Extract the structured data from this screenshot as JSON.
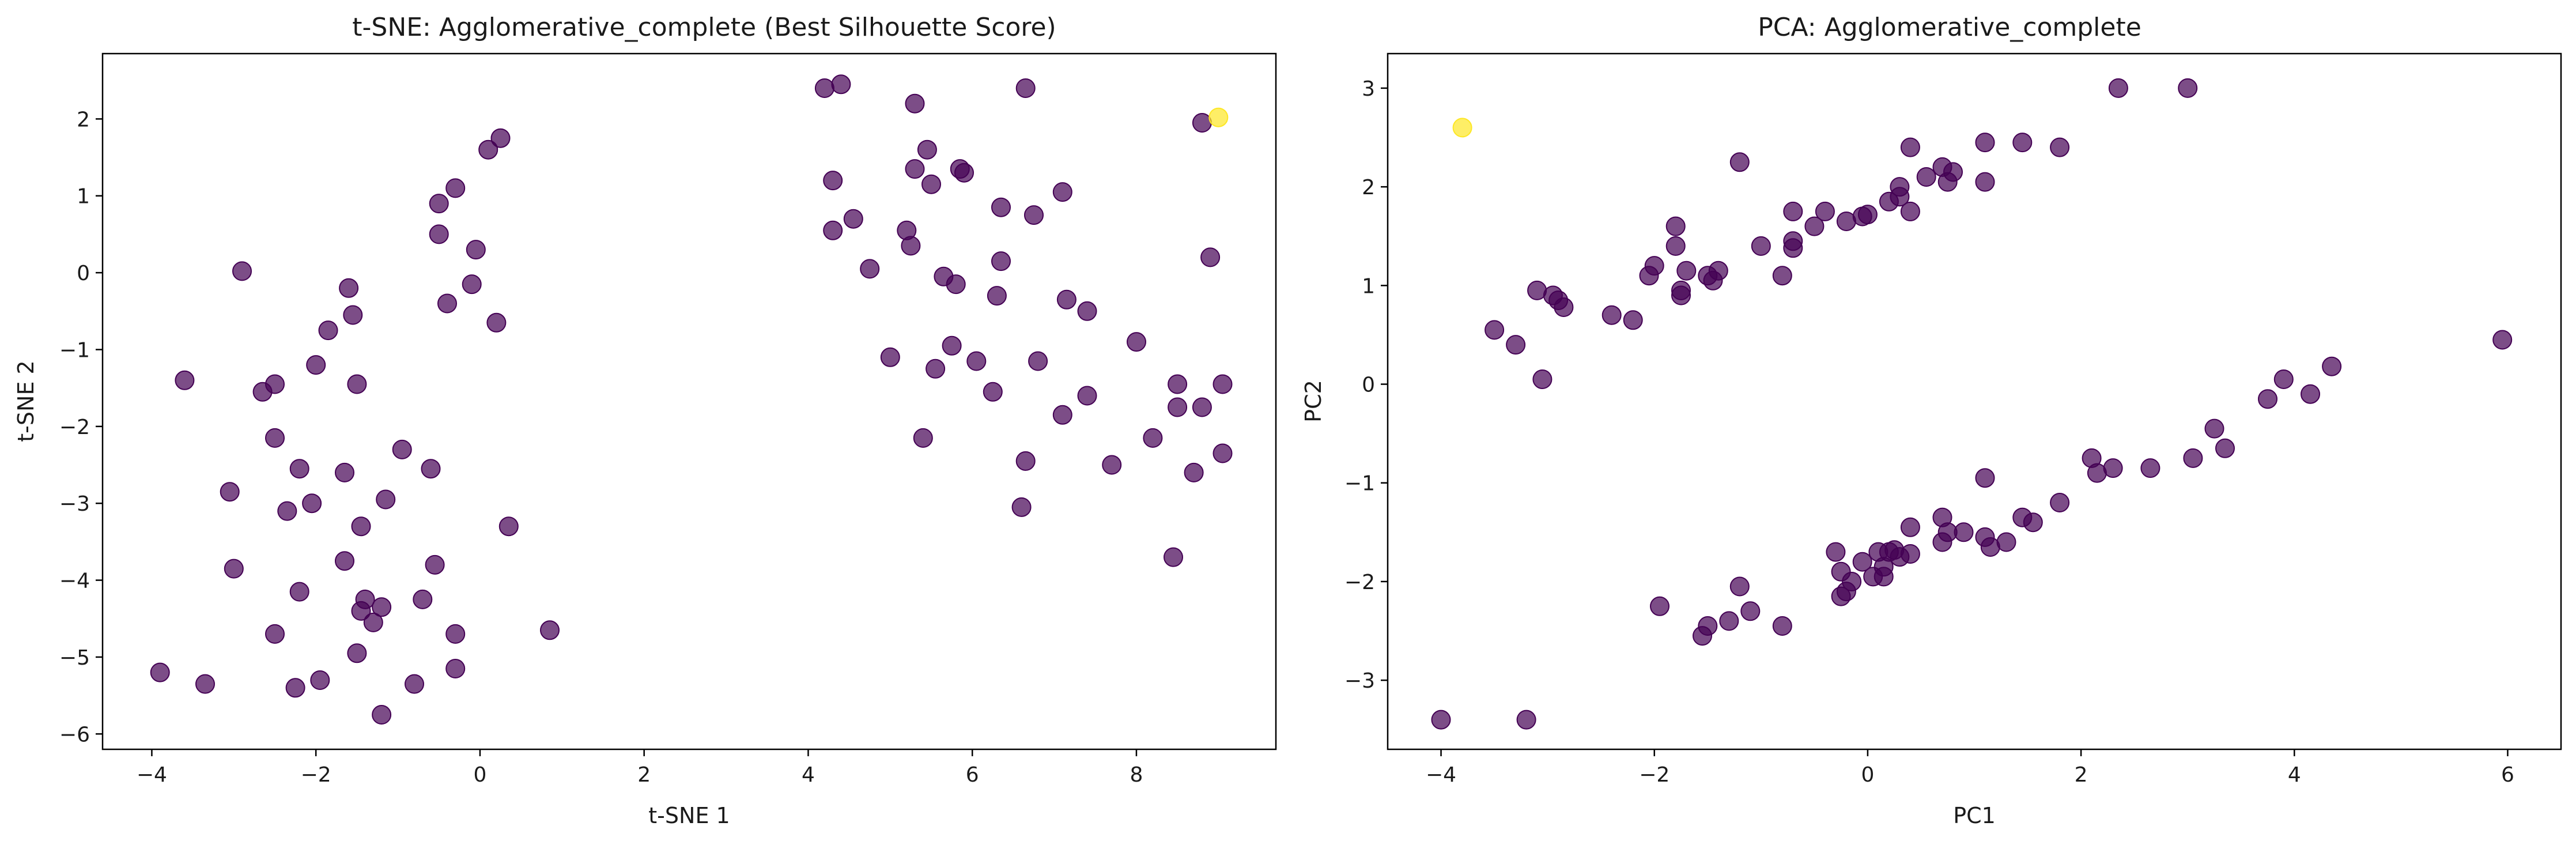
{
  "colors": {
    "cluster_0": "#440154",
    "cluster_1": "#fde725",
    "axis": "#000000",
    "text": "#1a1a1a"
  },
  "chart_data": [
    {
      "type": "scatter",
      "title": "t-SNE: Agglomerative_complete (Best Silhouette Score)",
      "xlabel": "t-SNE 1",
      "ylabel": "t-SNE 2",
      "xlim": [
        -4.6,
        9.7
      ],
      "ylim": [
        -6.2,
        2.85
      ],
      "xticks": [
        -4,
        -2,
        0,
        2,
        4,
        6,
        8
      ],
      "yticks": [
        -6,
        -5,
        -4,
        -3,
        -2,
        -1,
        0,
        1,
        2
      ],
      "grid": false,
      "point_alpha": 0.7,
      "points": [
        {
          "x": -3.9,
          "y": -5.2,
          "c": 0
        },
        {
          "x": -3.35,
          "y": -5.35,
          "c": 0
        },
        {
          "x": -3.6,
          "y": -1.4,
          "c": 0
        },
        {
          "x": -3.05,
          "y": -2.85,
          "c": 0
        },
        {
          "x": -3.0,
          "y": -3.85,
          "c": 0
        },
        {
          "x": -2.9,
          "y": 0.02,
          "c": 0
        },
        {
          "x": -2.65,
          "y": -1.55,
          "c": 0
        },
        {
          "x": -2.5,
          "y": -1.45,
          "c": 0
        },
        {
          "x": -2.5,
          "y": -2.15,
          "c": 0
        },
        {
          "x": -2.5,
          "y": -4.7,
          "c": 0
        },
        {
          "x": -2.35,
          "y": -3.1,
          "c": 0
        },
        {
          "x": -2.25,
          "y": -5.4,
          "c": 0
        },
        {
          "x": -2.2,
          "y": -2.55,
          "c": 0
        },
        {
          "x": -2.2,
          "y": -4.15,
          "c": 0
        },
        {
          "x": -2.05,
          "y": -3.0,
          "c": 0
        },
        {
          "x": -2.0,
          "y": -1.2,
          "c": 0
        },
        {
          "x": -1.95,
          "y": -5.3,
          "c": 0
        },
        {
          "x": -1.85,
          "y": -0.75,
          "c": 0
        },
        {
          "x": -1.65,
          "y": -2.6,
          "c": 0
        },
        {
          "x": -1.65,
          "y": -3.75,
          "c": 0
        },
        {
          "x": -1.6,
          "y": -0.2,
          "c": 0
        },
        {
          "x": -1.55,
          "y": -0.55,
          "c": 0
        },
        {
          "x": -1.5,
          "y": -1.45,
          "c": 0
        },
        {
          "x": -1.5,
          "y": -4.95,
          "c": 0
        },
        {
          "x": -1.45,
          "y": -3.3,
          "c": 0
        },
        {
          "x": -1.45,
          "y": -4.4,
          "c": 0
        },
        {
          "x": -1.4,
          "y": -4.25,
          "c": 0
        },
        {
          "x": -1.3,
          "y": -4.55,
          "c": 0
        },
        {
          "x": -1.2,
          "y": -4.35,
          "c": 0
        },
        {
          "x": -1.15,
          "y": -2.95,
          "c": 0
        },
        {
          "x": -1.2,
          "y": -5.75,
          "c": 0
        },
        {
          "x": -0.95,
          "y": -2.3,
          "c": 0
        },
        {
          "x": -0.8,
          "y": -5.35,
          "c": 0
        },
        {
          "x": -0.7,
          "y": -4.25,
          "c": 0
        },
        {
          "x": -0.6,
          "y": -2.55,
          "c": 0
        },
        {
          "x": -0.55,
          "y": -3.8,
          "c": 0
        },
        {
          "x": -0.5,
          "y": 0.5,
          "c": 0
        },
        {
          "x": -0.5,
          "y": 0.9,
          "c": 0
        },
        {
          "x": -0.4,
          "y": -0.4,
          "c": 0
        },
        {
          "x": -0.3,
          "y": 1.1,
          "c": 0
        },
        {
          "x": -0.3,
          "y": -4.7,
          "c": 0
        },
        {
          "x": -0.3,
          "y": -5.15,
          "c": 0
        },
        {
          "x": -0.1,
          "y": -0.15,
          "c": 0
        },
        {
          "x": -0.05,
          "y": 0.3,
          "c": 0
        },
        {
          "x": 0.1,
          "y": 1.6,
          "c": 0
        },
        {
          "x": 0.2,
          "y": -0.65,
          "c": 0
        },
        {
          "x": 0.25,
          "y": 1.75,
          "c": 0
        },
        {
          "x": 0.35,
          "y": -3.3,
          "c": 0
        },
        {
          "x": 0.85,
          "y": -4.65,
          "c": 0
        },
        {
          "x": 4.2,
          "y": 2.4,
          "c": 0
        },
        {
          "x": 4.3,
          "y": 1.2,
          "c": 0
        },
        {
          "x": 4.3,
          "y": 0.55,
          "c": 0
        },
        {
          "x": 4.4,
          "y": 2.45,
          "c": 0
        },
        {
          "x": 4.55,
          "y": 0.7,
          "c": 0
        },
        {
          "x": 4.75,
          "y": 0.05,
          "c": 0
        },
        {
          "x": 5.0,
          "y": -1.1,
          "c": 0
        },
        {
          "x": 5.2,
          "y": 0.55,
          "c": 0
        },
        {
          "x": 5.25,
          "y": 0.35,
          "c": 0
        },
        {
          "x": 5.3,
          "y": 2.2,
          "c": 0
        },
        {
          "x": 5.3,
          "y": 1.35,
          "c": 0
        },
        {
          "x": 5.4,
          "y": -2.15,
          "c": 0
        },
        {
          "x": 5.45,
          "y": 1.6,
          "c": 0
        },
        {
          "x": 5.5,
          "y": 1.15,
          "c": 0
        },
        {
          "x": 5.55,
          "y": -1.25,
          "c": 0
        },
        {
          "x": 5.65,
          "y": -0.05,
          "c": 0
        },
        {
          "x": 5.75,
          "y": -0.95,
          "c": 0
        },
        {
          "x": 5.8,
          "y": -0.15,
          "c": 0
        },
        {
          "x": 5.85,
          "y": 1.35,
          "c": 0
        },
        {
          "x": 5.9,
          "y": 1.3,
          "c": 0
        },
        {
          "x": 6.05,
          "y": -1.15,
          "c": 0
        },
        {
          "x": 6.25,
          "y": -1.55,
          "c": 0
        },
        {
          "x": 6.3,
          "y": -0.3,
          "c": 0
        },
        {
          "x": 6.35,
          "y": 0.85,
          "c": 0
        },
        {
          "x": 6.35,
          "y": 0.15,
          "c": 0
        },
        {
          "x": 6.6,
          "y": -3.05,
          "c": 0
        },
        {
          "x": 6.65,
          "y": 2.4,
          "c": 0
        },
        {
          "x": 6.65,
          "y": -2.45,
          "c": 0
        },
        {
          "x": 6.75,
          "y": 0.75,
          "c": 0
        },
        {
          "x": 6.8,
          "y": -1.15,
          "c": 0
        },
        {
          "x": 7.1,
          "y": 1.05,
          "c": 0
        },
        {
          "x": 7.1,
          "y": -1.85,
          "c": 0
        },
        {
          "x": 7.15,
          "y": -0.35,
          "c": 0
        },
        {
          "x": 7.4,
          "y": -0.5,
          "c": 0
        },
        {
          "x": 7.4,
          "y": -1.6,
          "c": 0
        },
        {
          "x": 7.7,
          "y": -2.5,
          "c": 0
        },
        {
          "x": 8.0,
          "y": -0.9,
          "c": 0
        },
        {
          "x": 8.2,
          "y": -2.15,
          "c": 0
        },
        {
          "x": 8.45,
          "y": -3.7,
          "c": 0
        },
        {
          "x": 8.5,
          "y": -1.45,
          "c": 0
        },
        {
          "x": 8.5,
          "y": -1.75,
          "c": 0
        },
        {
          "x": 8.7,
          "y": -2.6,
          "c": 0
        },
        {
          "x": 8.8,
          "y": 1.95,
          "c": 0
        },
        {
          "x": 8.8,
          "y": -1.75,
          "c": 0
        },
        {
          "x": 8.9,
          "y": 0.2,
          "c": 0
        },
        {
          "x": 9.05,
          "y": -1.45,
          "c": 0
        },
        {
          "x": 9.05,
          "y": -2.35,
          "c": 0
        },
        {
          "x": 9.0,
          "y": 2.02,
          "c": 1
        }
      ]
    },
    {
      "type": "scatter",
      "title": "PCA: Agglomerative_complete",
      "xlabel": "PC1",
      "ylabel": "PC2",
      "xlim": [
        -4.5,
        6.5
      ],
      "ylim": [
        -3.7,
        3.35
      ],
      "xticks": [
        -4,
        -2,
        0,
        2,
        4,
        6
      ],
      "yticks": [
        -3,
        -2,
        -1,
        0,
        1,
        2,
        3
      ],
      "grid": false,
      "point_alpha": 0.7,
      "points": [
        {
          "x": -3.5,
          "y": 0.55,
          "c": 0
        },
        {
          "x": -3.3,
          "y": 0.4,
          "c": 0
        },
        {
          "x": -3.1,
          "y": 0.95,
          "c": 0
        },
        {
          "x": -3.05,
          "y": 0.05,
          "c": 0
        },
        {
          "x": -2.95,
          "y": 0.9,
          "c": 0
        },
        {
          "x": -2.9,
          "y": 0.85,
          "c": 0
        },
        {
          "x": -2.85,
          "y": 0.78,
          "c": 0
        },
        {
          "x": -2.4,
          "y": 0.7,
          "c": 0
        },
        {
          "x": -2.2,
          "y": 0.65,
          "c": 0
        },
        {
          "x": -2.05,
          "y": 1.1,
          "c": 0
        },
        {
          "x": -2.0,
          "y": 1.2,
          "c": 0
        },
        {
          "x": -1.8,
          "y": 1.6,
          "c": 0
        },
        {
          "x": -1.8,
          "y": 1.4,
          "c": 0
        },
        {
          "x": -1.75,
          "y": 0.95,
          "c": 0
        },
        {
          "x": -1.75,
          "y": 0.9,
          "c": 0
        },
        {
          "x": -1.7,
          "y": 1.15,
          "c": 0
        },
        {
          "x": -1.5,
          "y": 1.1,
          "c": 0
        },
        {
          "x": -1.45,
          "y": 1.05,
          "c": 0
        },
        {
          "x": -1.4,
          "y": 1.15,
          "c": 0
        },
        {
          "x": -1.2,
          "y": 2.25,
          "c": 0
        },
        {
          "x": -1.0,
          "y": 1.4,
          "c": 0
        },
        {
          "x": -0.8,
          "y": 1.1,
          "c": 0
        },
        {
          "x": -0.7,
          "y": 1.75,
          "c": 0
        },
        {
          "x": -0.7,
          "y": 1.45,
          "c": 0
        },
        {
          "x": -0.7,
          "y": 1.38,
          "c": 0
        },
        {
          "x": -0.5,
          "y": 1.6,
          "c": 0
        },
        {
          "x": -0.4,
          "y": 1.75,
          "c": 0
        },
        {
          "x": -0.2,
          "y": 1.65,
          "c": 0
        },
        {
          "x": -0.05,
          "y": 1.7,
          "c": 0
        },
        {
          "x": 0.0,
          "y": 1.72,
          "c": 0
        },
        {
          "x": 0.2,
          "y": 1.85,
          "c": 0
        },
        {
          "x": 0.3,
          "y": 1.9,
          "c": 0
        },
        {
          "x": 0.3,
          "y": 2.0,
          "c": 0
        },
        {
          "x": 0.4,
          "y": 1.75,
          "c": 0
        },
        {
          "x": 0.4,
          "y": 2.4,
          "c": 0
        },
        {
          "x": 0.55,
          "y": 2.1,
          "c": 0
        },
        {
          "x": 0.7,
          "y": 2.2,
          "c": 0
        },
        {
          "x": 0.75,
          "y": 2.05,
          "c": 0
        },
        {
          "x": 0.8,
          "y": 2.15,
          "c": 0
        },
        {
          "x": 1.1,
          "y": 2.45,
          "c": 0
        },
        {
          "x": 1.1,
          "y": 2.05,
          "c": 0
        },
        {
          "x": 1.45,
          "y": 2.45,
          "c": 0
        },
        {
          "x": 1.8,
          "y": 2.4,
          "c": 0
        },
        {
          "x": 2.35,
          "y": 3.0,
          "c": 0
        },
        {
          "x": 3.0,
          "y": 3.0,
          "c": 0
        },
        {
          "x": -4.0,
          "y": -3.4,
          "c": 0
        },
        {
          "x": -3.2,
          "y": -3.4,
          "c": 0
        },
        {
          "x": -1.95,
          "y": -2.25,
          "c": 0
        },
        {
          "x": -1.55,
          "y": -2.55,
          "c": 0
        },
        {
          "x": -1.5,
          "y": -2.45,
          "c": 0
        },
        {
          "x": -1.3,
          "y": -2.4,
          "c": 0
        },
        {
          "x": -1.2,
          "y": -2.05,
          "c": 0
        },
        {
          "x": -1.1,
          "y": -2.3,
          "c": 0
        },
        {
          "x": -0.8,
          "y": -2.45,
          "c": 0
        },
        {
          "x": -0.3,
          "y": -1.7,
          "c": 0
        },
        {
          "x": -0.25,
          "y": -1.9,
          "c": 0
        },
        {
          "x": -0.25,
          "y": -2.15,
          "c": 0
        },
        {
          "x": -0.2,
          "y": -2.1,
          "c": 0
        },
        {
          "x": -0.15,
          "y": -2.0,
          "c": 0
        },
        {
          "x": -0.05,
          "y": -1.8,
          "c": 0
        },
        {
          "x": 0.05,
          "y": -1.95,
          "c": 0
        },
        {
          "x": 0.1,
          "y": -1.7,
          "c": 0
        },
        {
          "x": 0.15,
          "y": -1.95,
          "c": 0
        },
        {
          "x": 0.15,
          "y": -1.85,
          "c": 0
        },
        {
          "x": 0.2,
          "y": -1.7,
          "c": 0
        },
        {
          "x": 0.25,
          "y": -1.68,
          "c": 0
        },
        {
          "x": 0.3,
          "y": -1.75,
          "c": 0
        },
        {
          "x": 0.4,
          "y": -1.45,
          "c": 0
        },
        {
          "x": 0.4,
          "y": -1.72,
          "c": 0
        },
        {
          "x": 0.7,
          "y": -1.6,
          "c": 0
        },
        {
          "x": 0.7,
          "y": -1.35,
          "c": 0
        },
        {
          "x": 0.75,
          "y": -1.5,
          "c": 0
        },
        {
          "x": 0.9,
          "y": -1.5,
          "c": 0
        },
        {
          "x": 1.1,
          "y": -1.55,
          "c": 0
        },
        {
          "x": 1.15,
          "y": -1.65,
          "c": 0
        },
        {
          "x": 1.1,
          "y": -0.95,
          "c": 0
        },
        {
          "x": 1.3,
          "y": -1.6,
          "c": 0
        },
        {
          "x": 1.45,
          "y": -1.35,
          "c": 0
        },
        {
          "x": 1.55,
          "y": -1.4,
          "c": 0
        },
        {
          "x": 1.8,
          "y": -1.2,
          "c": 0
        },
        {
          "x": 2.1,
          "y": -0.75,
          "c": 0
        },
        {
          "x": 2.15,
          "y": -0.9,
          "c": 0
        },
        {
          "x": 2.3,
          "y": -0.85,
          "c": 0
        },
        {
          "x": 2.65,
          "y": -0.85,
          "c": 0
        },
        {
          "x": 3.05,
          "y": -0.75,
          "c": 0
        },
        {
          "x": 3.25,
          "y": -0.45,
          "c": 0
        },
        {
          "x": 3.35,
          "y": -0.65,
          "c": 0
        },
        {
          "x": 3.75,
          "y": -0.15,
          "c": 0
        },
        {
          "x": 3.9,
          "y": 0.05,
          "c": 0
        },
        {
          "x": 4.15,
          "y": -0.1,
          "c": 0
        },
        {
          "x": 4.35,
          "y": 0.18,
          "c": 0
        },
        {
          "x": 5.95,
          "y": 0.45,
          "c": 0
        },
        {
          "x": -3.8,
          "y": 2.6,
          "c": 1
        }
      ]
    }
  ]
}
